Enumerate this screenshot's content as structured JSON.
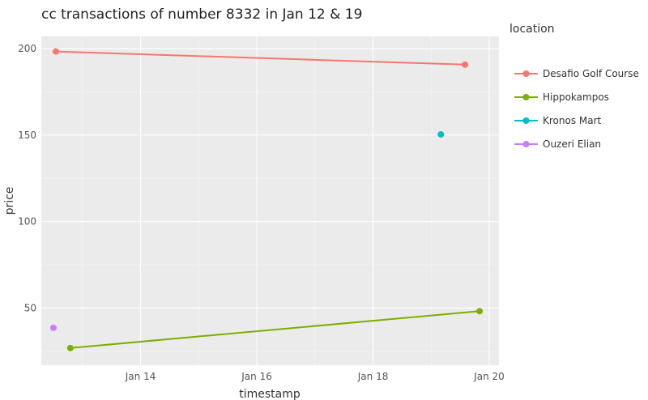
{
  "chart_data": {
    "type": "line",
    "title": "cc transactions of number 8332 in Jan 12 & 19",
    "xlabel": "timestamp",
    "ylabel": "price",
    "x_ticks": [
      "Jan 14",
      "Jan 16",
      "Jan 18",
      "Jan 20"
    ],
    "y_ticks": [
      "50",
      "100",
      "150",
      "200"
    ],
    "xlim": [
      "2014-01-12 07:00",
      "2014-01-20 04:00"
    ],
    "ylim": [
      17,
      207
    ],
    "legend_title": "location",
    "legend_position": "right",
    "grid": true,
    "series": [
      {
        "name": "Desafio Golf Course",
        "color": "#f8766d",
        "points": [
          {
            "x": "2014-01-12 13:00",
            "y": 198.3
          },
          {
            "x": "2014-01-19 14:00",
            "y": 190.7
          }
        ]
      },
      {
        "name": "Hippokampos",
        "color": "#7cae00",
        "points": [
          {
            "x": "2014-01-12 19:00",
            "y": 26.9
          },
          {
            "x": "2014-01-19 20:00",
            "y": 48.2
          }
        ]
      },
      {
        "name": "Kronos Mart",
        "color": "#00bfc4",
        "points": [
          {
            "x": "2014-01-19 04:00",
            "y": 150.4
          }
        ]
      },
      {
        "name": "Ouzeri Elian",
        "color": "#c77cff",
        "points": [
          {
            "x": "2014-01-12 12:00",
            "y": 38.6
          }
        ]
      }
    ]
  }
}
